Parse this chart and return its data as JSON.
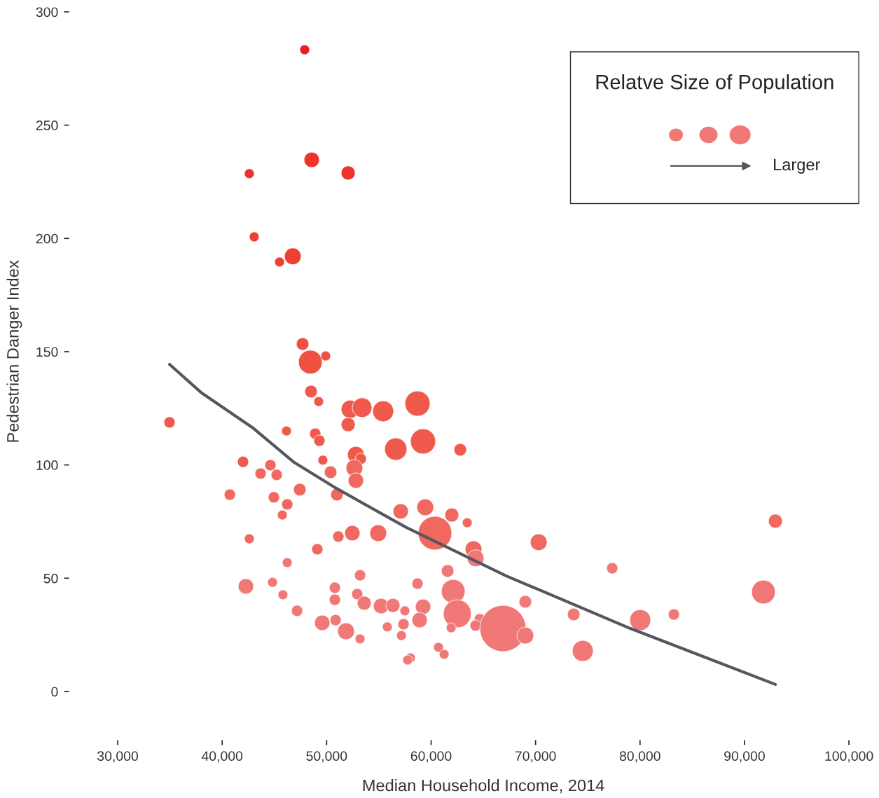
{
  "chart_data": {
    "type": "bubble",
    "xlabel": "Median Household Income, 2014",
    "ylabel": "Pedestrian Danger Index",
    "legend_title": "Relatve Size of Population",
    "annotations": [
      "Larger"
    ],
    "xlim": [
      30000,
      100000
    ],
    "xticks": [
      {
        "value": 30000,
        "label": "30,000"
      },
      {
        "value": 40000,
        "label": "40,000"
      },
      {
        "value": 50000,
        "label": "50,000"
      },
      {
        "value": 60000,
        "label": "60,000"
      },
      {
        "value": 70000,
        "label": "70,000"
      },
      {
        "value": 80000,
        "label": "80,000"
      },
      {
        "value": 90000,
        "label": "90,000"
      },
      {
        "value": 100000,
        "label": "100,000"
      }
    ],
    "ylim": [
      0,
      300
    ],
    "yticks": [
      0,
      50,
      100,
      150,
      200,
      250,
      300
    ],
    "grid": false,
    "series": [
      {
        "marker": "circle",
        "x": [
          47900,
          48570,
          42600,
          52060,
          43070,
          46760,
          45490,
          47700,
          48440,
          49910,
          48510,
          49240,
          34960,
          46160,
          52260,
          53400,
          52060,
          55410,
          58700,
          59230,
          56620,
          62790,
          48910,
          49310,
          42000,
          44620,
          49640,
          43680,
          45220,
          50380,
          52800,
          53270,
          52660,
          52800,
          40730,
          44950,
          47430,
          50990,
          46230,
          45760,
          57090,
          59440,
          61980,
          63460,
          52460,
          51120,
          54940,
          60370,
          42600,
          64060,
          64260,
          70300,
          92960,
          77340,
          49110,
          46230,
          53200,
          61580,
          58700,
          62120,
          42270,
          44820,
          50790,
          45820,
          52930,
          50790,
          53600,
          55210,
          56350,
          59230,
          57490,
          62510,
          47170,
          69020,
          73650,
          83240,
          91820,
          80020,
          49580,
          50860,
          58900,
          57360,
          64660,
          64260,
          66880,
          69020,
          61920,
          55810,
          51860,
          53200,
          57160,
          74520,
          60710,
          61250,
          58030,
          57760
        ],
        "values": [
          283.3,
          234.7,
          228.6,
          228.9,
          200.7,
          192.1,
          189.6,
          153.4,
          145.4,
          148.1,
          132.4,
          128.0,
          118.8,
          115.0,
          124.6,
          125.3,
          117.8,
          123.7,
          127.1,
          110.4,
          107.0,
          106.7,
          113.8,
          110.7,
          101.4,
          99.9,
          102.1,
          96.2,
          95.6,
          96.8,
          104.5,
          102.7,
          98.7,
          93.1,
          86.9,
          85.7,
          89.1,
          86.9,
          82.6,
          77.9,
          79.5,
          81.3,
          77.9,
          74.5,
          69.9,
          68.4,
          69.9,
          69.9,
          67.4,
          62.8,
          58.8,
          65.9,
          75.2,
          54.4,
          62.8,
          56.9,
          51.3,
          53.2,
          47.6,
          44.2,
          46.4,
          48.2,
          45.8,
          42.7,
          43.0,
          40.5,
          39.0,
          37.7,
          38.0,
          37.4,
          35.6,
          34.3,
          35.6,
          39.6,
          34.0,
          34.0,
          43.9,
          31.5,
          30.3,
          31.5,
          31.5,
          29.7,
          31.9,
          29.1,
          27.8,
          24.7,
          28.1,
          28.5,
          26.6,
          23.2,
          24.7,
          17.9,
          19.5,
          16.4,
          14.8,
          13.9
        ],
        "sizes": [
          0.045,
          0.111,
          0.045,
          0.092,
          0.045,
          0.132,
          0.045,
          0.074,
          0.265,
          0.045,
          0.074,
          0.045,
          0.059,
          0.045,
          0.155,
          0.18,
          0.092,
          0.207,
          0.298,
          0.298,
          0.235,
          0.074,
          0.059,
          0.059,
          0.059,
          0.059,
          0.045,
          0.059,
          0.059,
          0.074,
          0.132,
          0.059,
          0.132,
          0.111,
          0.059,
          0.059,
          0.074,
          0.074,
          0.059,
          0.045,
          0.111,
          0.132,
          0.092,
          0.045,
          0.111,
          0.059,
          0.132,
          0.529,
          0.045,
          0.132,
          0.132,
          0.132,
          0.092,
          0.059,
          0.059,
          0.045,
          0.059,
          0.074,
          0.059,
          0.265,
          0.111,
          0.045,
          0.059,
          0.045,
          0.059,
          0.059,
          0.092,
          0.111,
          0.092,
          0.111,
          0.045,
          0.367,
          0.059,
          0.074,
          0.074,
          0.059,
          0.265,
          0.207,
          0.111,
          0.059,
          0.111,
          0.059,
          0.059,
          0.059,
          1,
          0.132,
          0.045,
          0.045,
          0.132,
          0.045,
          0.045,
          0.207,
          0.045,
          0.045,
          0.045,
          0.045
        ],
        "colors": [
          "#ec1c24",
          "#ee3328",
          "#ee3328",
          "#ee3328",
          "#ee4030",
          "#ee4030",
          "#ee4030",
          "#ef5040",
          "#ef5040",
          "#ef5040",
          "#f05a4c",
          "#f05a4c",
          "#f05a4c",
          "#f05a4c",
          "#f05a4c",
          "#f05a4c",
          "#f05a4c",
          "#f05a4c",
          "#f05a4c",
          "#f05a4c",
          "#f05a4c",
          "#f05a4c",
          "#f05a4c",
          "#f05a4c",
          "#f05a4c",
          "#f06860",
          "#f05a4c",
          "#f06860",
          "#f06860",
          "#f06860",
          "#f05a4c",
          "#f05a4c",
          "#f06860",
          "#f06860",
          "#f06860",
          "#f06860",
          "#f06860",
          "#f06860",
          "#f06860",
          "#f06860",
          "#f06860",
          "#f06860",
          "#f06860",
          "#f06860",
          "#f06860",
          "#f06860",
          "#f06860",
          "#f06860",
          "#f06860",
          "#f06860",
          "#f07876",
          "#f06860",
          "#f06860",
          "#f07876",
          "#f06860",
          "#f07876",
          "#f07876",
          "#f07876",
          "#f07876",
          "#f07876",
          "#f07876",
          "#f07876",
          "#f07876",
          "#f07876",
          "#f07876",
          "#f07876",
          "#f07876",
          "#f07876",
          "#f07876",
          "#f07876",
          "#f07876",
          "#f07876",
          "#f07876",
          "#f07876",
          "#f07876",
          "#f07876",
          "#f07876",
          "#f07876",
          "#f07876",
          "#f07876",
          "#f07876",
          "#f07876",
          "#f07876",
          "#f07876",
          "#f07876",
          "#f07876",
          "#f07876",
          "#f07876",
          "#f07876",
          "#f07876",
          "#f07876",
          "#f07876",
          "#f07876",
          "#f07876",
          "#f07876",
          "#f07876"
        ]
      },
      {
        "type": "line",
        "color": "#55565f",
        "line_style": "solid",
        "marker": "none",
        "x": [
          34960,
          37980,
          42870,
          46900,
          50920,
          57630,
          67210,
          79080,
          92960
        ],
        "values": [
          144.4,
          132.0,
          116.6,
          101.1,
          89.7,
          72.4,
          51.0,
          27.8,
          3.1
        ]
      }
    ]
  }
}
